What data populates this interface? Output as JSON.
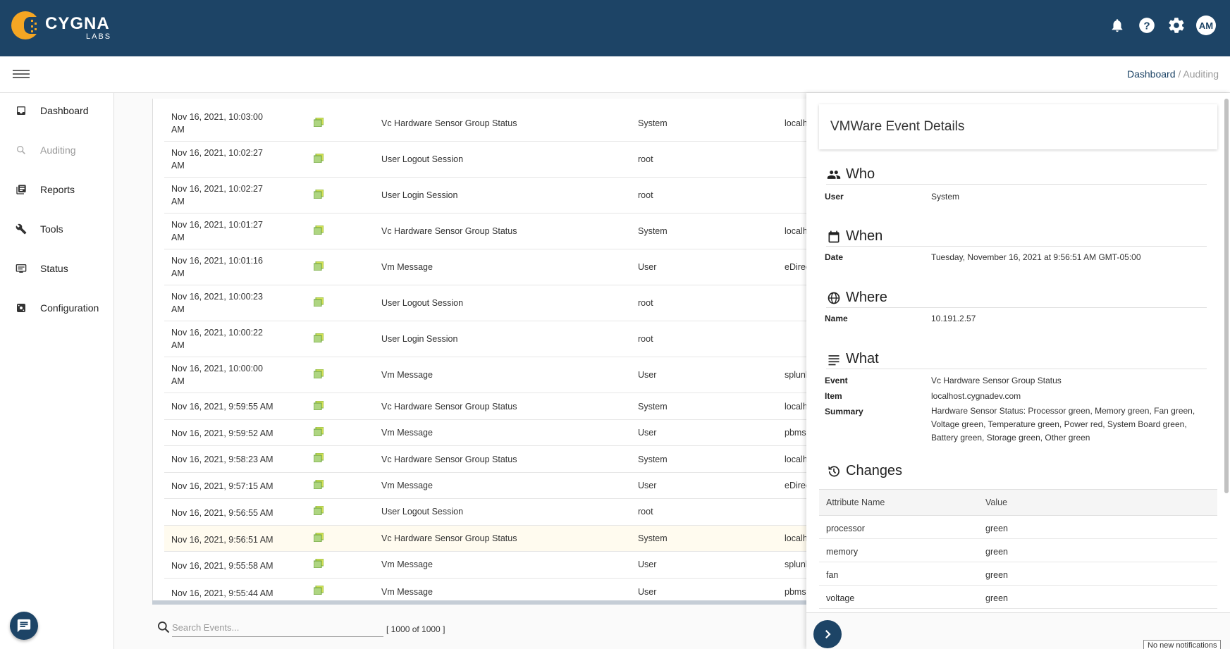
{
  "brand": {
    "name": "CYGNA",
    "sub": "LABS"
  },
  "header": {
    "avatar_initials": "AM",
    "icons": [
      "bell-icon",
      "help-icon",
      "gear-icon"
    ]
  },
  "breadcrumb": {
    "root": "Dashboard",
    "separator": "/",
    "current": "Auditing"
  },
  "sidebar": {
    "items": [
      {
        "label": "Dashboard",
        "icon": "inbox-icon"
      },
      {
        "label": "Auditing",
        "icon": "search-icon"
      },
      {
        "label": "Reports",
        "icon": "reports-icon"
      },
      {
        "label": "Tools",
        "icon": "wrench-icon"
      },
      {
        "label": "Status",
        "icon": "monitor-icon"
      },
      {
        "label": "Configuration",
        "icon": "config-icon"
      }
    ]
  },
  "events": [
    {
      "date": "Nov 16, 2021, 10:03:00 AM",
      "event": "Vc Hardware Sensor Group Status",
      "user": "System",
      "host": "localhost"
    },
    {
      "date": "Nov 16, 2021, 10:02:27 AM",
      "event": "User Logout Session",
      "user": "root",
      "host": ""
    },
    {
      "date": "Nov 16, 2021, 10:02:27 AM",
      "event": "User Login Session",
      "user": "root",
      "host": ""
    },
    {
      "date": "Nov 16, 2021, 10:01:27 AM",
      "event": "Vc Hardware Sensor Group Status",
      "user": "System",
      "host": "localhost"
    },
    {
      "date": "Nov 16, 2021, 10:01:16 AM",
      "event": "Vm Message",
      "user": "User",
      "host": "eDirecto"
    },
    {
      "date": "Nov 16, 2021, 10:00:23 AM",
      "event": "User Logout Session",
      "user": "root",
      "host": ""
    },
    {
      "date": "Nov 16, 2021, 10:00:22 AM",
      "event": "User Login Session",
      "user": "root",
      "host": ""
    },
    {
      "date": "Nov 16, 2021, 10:00:00 AM",
      "event": "Vm Message",
      "user": "User",
      "host": "splunk.cy"
    },
    {
      "date": "Nov 16, 2021, 9:59:55 AM",
      "event": "Vc Hardware Sensor Group Status",
      "user": "System",
      "host": "localhost"
    },
    {
      "date": "Nov 16, 2021, 9:59:52 AM",
      "event": "Vm Message",
      "user": "User",
      "host": "pbms.cy"
    },
    {
      "date": "Nov 16, 2021, 9:58:23 AM",
      "event": "Vc Hardware Sensor Group Status",
      "user": "System",
      "host": "localhost"
    },
    {
      "date": "Nov 16, 2021, 9:57:15 AM",
      "event": "Vm Message",
      "user": "User",
      "host": "eDirecto"
    },
    {
      "date": "Nov 16, 2021, 9:56:55 AM",
      "event": "User Logout Session",
      "user": "root",
      "host": ""
    },
    {
      "date": "Nov 16, 2021, 9:56:51 AM",
      "event": "Vc Hardware Sensor Group Status",
      "user": "System",
      "host": "localhost"
    },
    {
      "date": "Nov 16, 2021, 9:55:58 AM",
      "event": "Vm Message",
      "user": "User",
      "host": "splunk.cy"
    },
    {
      "date": "Nov 16, 2021, 9:55:44 AM",
      "event": "Vm Message",
      "user": "User",
      "host": "pbms.cy"
    }
  ],
  "search": {
    "placeholder": "Search Events...",
    "count": "[ 1000 of 1000 ]"
  },
  "details": {
    "title": "VMWare Event Details",
    "who": {
      "heading": "Who",
      "user_label": "User",
      "user": "System"
    },
    "when": {
      "heading": "When",
      "date_label": "Date",
      "date": "Tuesday, November 16, 2021 at 9:56:51 AM GMT-05:00"
    },
    "where": {
      "heading": "Where",
      "name_label": "Name",
      "name": "10.191.2.57"
    },
    "what": {
      "heading": "What",
      "event_label": "Event",
      "event": "Vc Hardware Sensor Group Status",
      "item_label": "Item",
      "item": "localhost.cygnadev.com",
      "summary_label": "Summary",
      "summary": "Hardware Sensor Status: Processor green, Memory green, Fan green, Voltage green, Temperature green, Power red, System Board green, Battery green, Storage green, Other green"
    },
    "changes": {
      "heading": "Changes",
      "col_attr": "Attribute Name",
      "col_value": "Value",
      "rows": [
        {
          "attr": "processor",
          "value": "green"
        },
        {
          "attr": "memory",
          "value": "green"
        },
        {
          "attr": "fan",
          "value": "green"
        },
        {
          "attr": "voltage",
          "value": "green"
        }
      ]
    }
  },
  "notification": "No new notifications",
  "colors": {
    "header": "#1d4466",
    "accent": "#f5a623",
    "event_icon": "#8bc34a"
  }
}
